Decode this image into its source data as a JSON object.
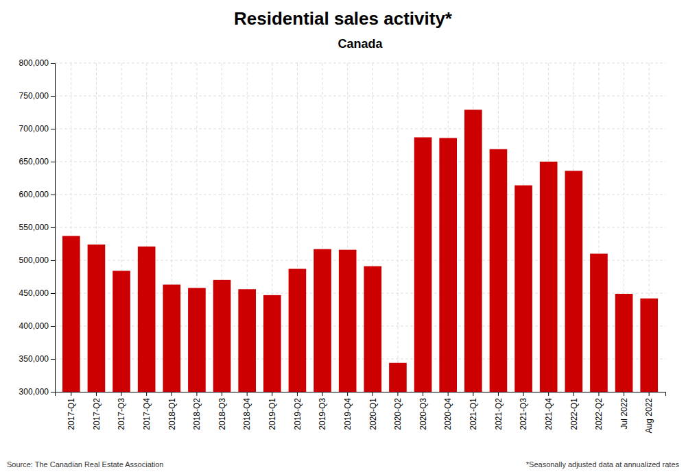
{
  "chart_data": {
    "type": "bar",
    "title": "Residential sales activity*",
    "subtitle": "Canada",
    "categories": [
      "2017-Q1",
      "2017-Q2",
      "2017-Q3",
      "2017-Q4",
      "2018-Q1",
      "2018-Q2",
      "2018-Q3",
      "2018-Q4",
      "2019-Q1",
      "2019-Q2",
      "2019-Q3",
      "2019-Q4",
      "2020-Q1",
      "2020-Q2",
      "2020-Q3",
      "2020-Q4",
      "2021-Q1",
      "2021-Q2",
      "2021-Q3",
      "2021-Q4",
      "2022-Q1",
      "2022-Q2",
      "Jul 2022",
      "Aug 2022"
    ],
    "values": [
      537000,
      524000,
      484000,
      521000,
      463000,
      458000,
      470000,
      456000,
      447000,
      487000,
      517000,
      516000,
      491000,
      344000,
      687000,
      686000,
      729000,
      669000,
      614000,
      650000,
      636000,
      510000,
      449000,
      442000
    ],
    "color": "#cc0000",
    "ylim": [
      300000,
      800000
    ],
    "yticks": [
      {
        "value": 300000,
        "label": "300,000"
      },
      {
        "value": 350000,
        "label": "350,000"
      },
      {
        "value": 400000,
        "label": "400,000"
      },
      {
        "value": 450000,
        "label": "450,000"
      },
      {
        "value": 500000,
        "label": "500,000"
      },
      {
        "value": 550000,
        "label": "550,000"
      },
      {
        "value": 600000,
        "label": "600,000"
      },
      {
        "value": 650000,
        "label": "650,000"
      },
      {
        "value": 700000,
        "label": "700,000"
      },
      {
        "value": 750000,
        "label": "750,000"
      },
      {
        "value": 800000,
        "label": "800,000"
      }
    ],
    "grid": true,
    "annotations": [
      "Source: The Canadian Real Estate Association",
      "*Seasonally adjusted data at annualized rates"
    ]
  }
}
